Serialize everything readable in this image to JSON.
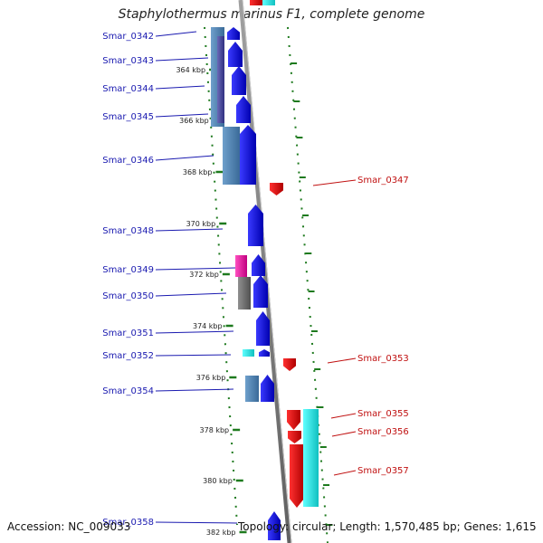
{
  "title": "Staphylothermus marinus F1, complete genome",
  "footer": {
    "accession": "Accession: NC_009033",
    "topology": "Topology: circular; Length: 1,570,485 bp; Genes: 1,615"
  },
  "colors": {
    "forward_cds": "#1010e0",
    "reverse_cds": "#e01010",
    "left_label": "#1a1ab0",
    "right_label": "#c01010",
    "tick": "#1e7a1e",
    "backbone": "#888888",
    "cog_steelblue": "#4a7fb0",
    "cog_slate": "#4a4a9a",
    "cog_magenta": "#e0209a",
    "cog_gray": "#707070",
    "cog_cyan": "#20e0e0"
  },
  "position_ticks": [
    "364 kbp",
    "366 kbp",
    "368 kbp",
    "370 kbp",
    "372 kbp",
    "374 kbp",
    "376 kbp",
    "378 kbp",
    "380 kbp",
    "382 kbp"
  ],
  "left_labels": [
    "Smar_0342",
    "Smar_0343",
    "Smar_0344",
    "Smar_0345",
    "Smar_0346",
    "Smar_0348",
    "Smar_0349",
    "Smar_0350",
    "Smar_0351",
    "Smar_0352",
    "Smar_0354",
    "Smar_0358"
  ],
  "right_labels": [
    "Smar_0347",
    "Smar_0353",
    "Smar_0355",
    "Smar_0356",
    "Smar_0357"
  ]
}
